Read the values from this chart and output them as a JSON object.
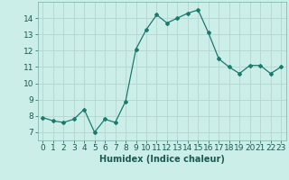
{
  "x": [
    0,
    1,
    2,
    3,
    4,
    5,
    6,
    7,
    8,
    9,
    10,
    11,
    12,
    13,
    14,
    15,
    16,
    17,
    18,
    19,
    20,
    21,
    22,
    23
  ],
  "y": [
    7.9,
    7.7,
    7.6,
    7.8,
    8.4,
    7.0,
    7.8,
    7.6,
    8.9,
    12.1,
    13.3,
    14.2,
    13.7,
    14.0,
    14.3,
    14.5,
    13.1,
    11.5,
    11.0,
    10.6,
    11.1,
    11.1,
    10.6,
    11.0
  ],
  "line_color": "#1a7a6e",
  "marker": "D",
  "marker_size": 2,
  "bg_color": "#cceee8",
  "grid_color": "#b8d8d4",
  "xlabel": "Humidex (Indice chaleur)",
  "xlim": [
    -0.5,
    23.5
  ],
  "ylim": [
    6.5,
    15.0
  ],
  "yticks": [
    7,
    8,
    9,
    10,
    11,
    12,
    13,
    14
  ],
  "xticks": [
    0,
    1,
    2,
    3,
    4,
    5,
    6,
    7,
    8,
    9,
    10,
    11,
    12,
    13,
    14,
    15,
    16,
    17,
    18,
    19,
    20,
    21,
    22,
    23
  ],
  "font_size_label": 7,
  "tick_font_size": 6.5
}
